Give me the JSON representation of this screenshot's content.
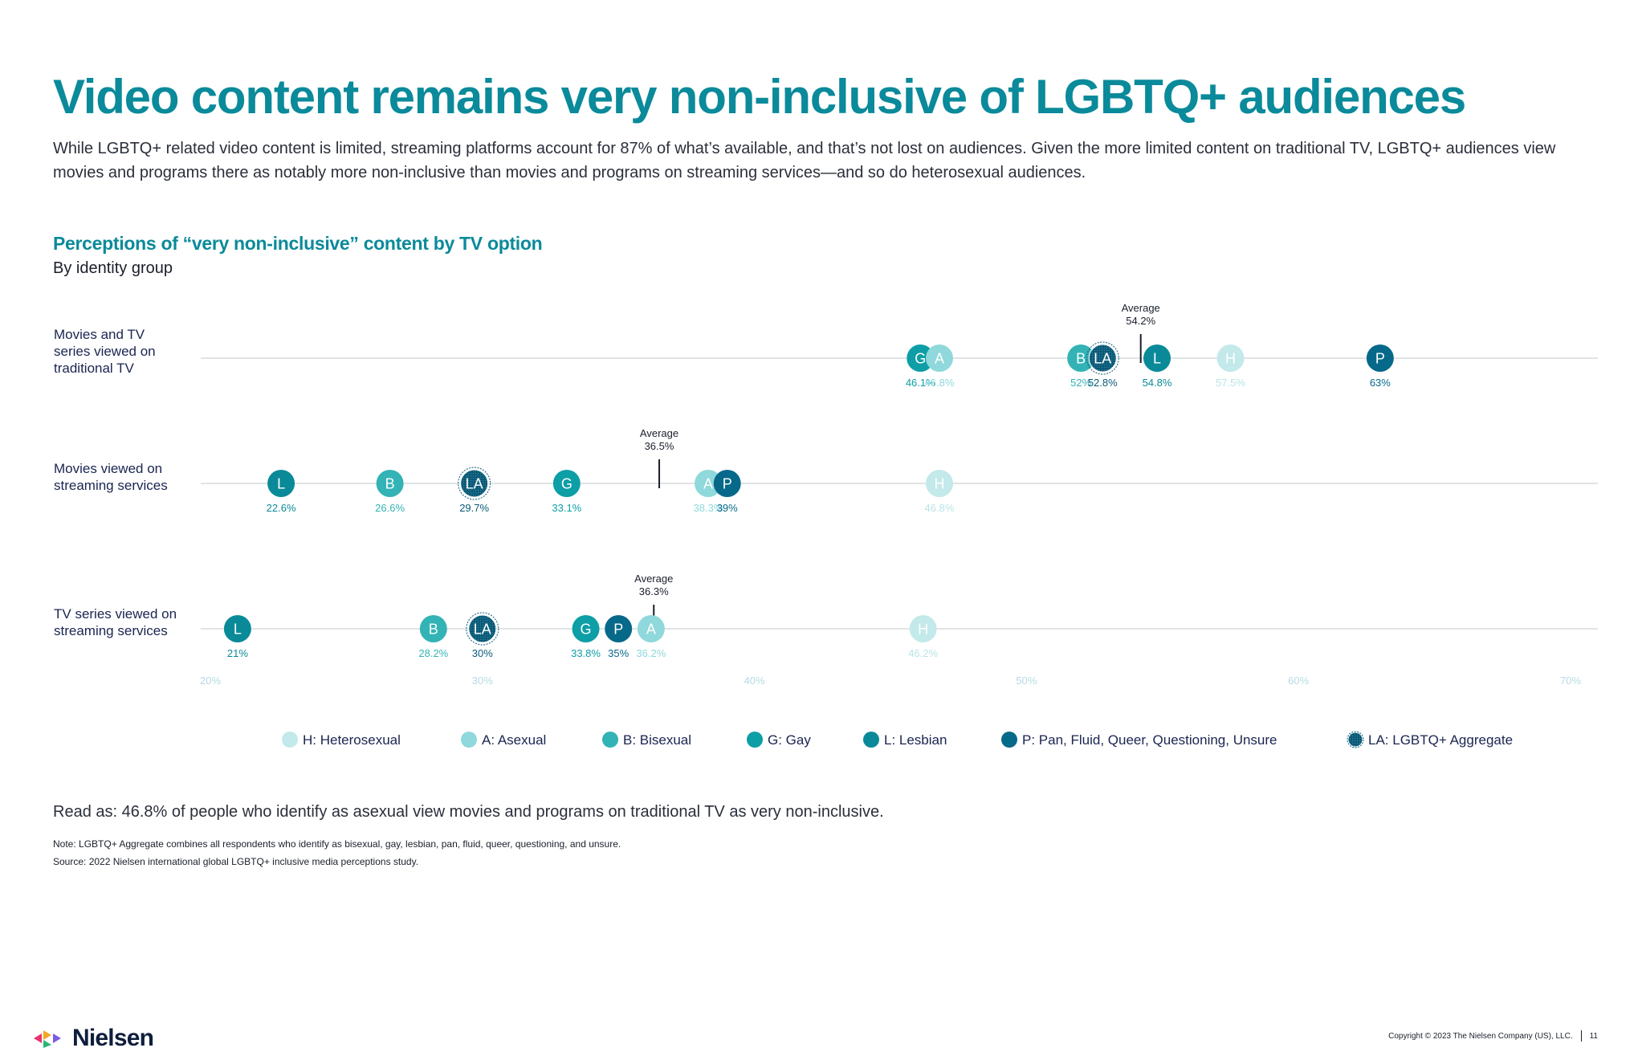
{
  "page": {
    "title": "Video content remains very non-inclusive of LGBTQ+ audiences",
    "intro": "While LGBTQ+ related video content is limited, streaming platforms account for 87% of what’s available, and that’s not lost on audiences. Given the more limited content on traditional TV, LGBTQ+ audiences view movies and programs there as notably more non-inclusive than movies and programs on streaming services—and so do heterosexual audiences.",
    "read_as": "Read as: 46.8% of people who identify as asexual view movies and programs on traditional TV as very non-inclusive.",
    "note": "Note: LGBTQ+ Aggregate combines all respondents who identify as bisexual, gay, lesbian, pan, fluid, queer, questioning, and unsure.",
    "source": "Source: 2022 Nielsen international global LGBTQ+ inclusive media perceptions study.",
    "brand": "Nielsen",
    "copyright": "Copyright © 2023 The Nielsen Company (US), LLC.",
    "page_number": "11"
  },
  "chart_data": {
    "type": "scatter",
    "title": "Perceptions of “very non-inclusive” content by TV option",
    "subtitle": "By identity group",
    "xlim": [
      20,
      70
    ],
    "x_ticks": [
      {
        "value": 20,
        "label": "20%"
      },
      {
        "value": 30,
        "label": "30%"
      },
      {
        "value": 40,
        "label": "40%"
      },
      {
        "value": 50,
        "label": "50%"
      },
      {
        "value": 60,
        "label": "60%"
      },
      {
        "value": 70,
        "label": "70%"
      }
    ],
    "average_word": "Average",
    "groups": [
      {
        "code": "H",
        "name": "H: Heterosexual",
        "color": "#c3e9ea",
        "text_color": "#b8e4e6"
      },
      {
        "code": "A",
        "name": "A: Asexual",
        "color": "#8fd8db",
        "text_color": "#8fd8db"
      },
      {
        "code": "B",
        "name": "B: Bisexual",
        "color": "#33b3b5",
        "text_color": "#33b3b5"
      },
      {
        "code": "G",
        "name": "G: Gay",
        "color": "#0d9ea6",
        "text_color": "#0d9ea6"
      },
      {
        "code": "L",
        "name": "L: Lesbian",
        "color": "#0a8a98",
        "text_color": "#0a8a98"
      },
      {
        "code": "P",
        "name": "P: Pan, Fluid, Queer, Questioning, Unsure",
        "color": "#07698a",
        "text_color": "#07698a"
      },
      {
        "code": "LA",
        "name": "LA: LGBTQ+ Aggregate",
        "color": "#0b5a78",
        "text_color": "#0b5a78"
      }
    ],
    "rows": [
      {
        "label": [
          "Movies and TV",
          "series viewed on",
          "traditional TV"
        ],
        "average": 54.2,
        "average_label": "54.2%",
        "points": [
          {
            "group": "G",
            "value": 46.1,
            "label": "46.1%"
          },
          {
            "group": "A",
            "value": 46.8,
            "label": "46.8%"
          },
          {
            "group": "B",
            "value": 52.0,
            "label": "52%"
          },
          {
            "group": "LA",
            "value": 52.8,
            "label": "52.8%"
          },
          {
            "group": "L",
            "value": 54.8,
            "label": "54.8%"
          },
          {
            "group": "H",
            "value": 57.5,
            "label": "57.5%"
          },
          {
            "group": "P",
            "value": 63.0,
            "label": "63%"
          }
        ]
      },
      {
        "label": [
          "Movies viewed on",
          "streaming services"
        ],
        "average": 36.5,
        "average_label": "36.5%",
        "points": [
          {
            "group": "L",
            "value": 22.6,
            "label": "22.6%"
          },
          {
            "group": "B",
            "value": 26.6,
            "label": "26.6%"
          },
          {
            "group": "LA",
            "value": 29.7,
            "label": "29.7%"
          },
          {
            "group": "G",
            "value": 33.1,
            "label": "33.1%"
          },
          {
            "group": "A",
            "value": 38.3,
            "label": "38.3%"
          },
          {
            "group": "P",
            "value": 39.0,
            "label": "39%"
          },
          {
            "group": "H",
            "value": 46.8,
            "label": "46.8%"
          }
        ]
      },
      {
        "label": [
          "TV series viewed on",
          "streaming services"
        ],
        "average": 36.3,
        "average_label": "36.3%",
        "points": [
          {
            "group": "L",
            "value": 21.0,
            "label": "21%"
          },
          {
            "group": "B",
            "value": 28.2,
            "label": "28.2%"
          },
          {
            "group": "LA",
            "value": 30.0,
            "label": "30%"
          },
          {
            "group": "G",
            "value": 33.8,
            "label": "33.8%"
          },
          {
            "group": "P",
            "value": 35.0,
            "label": "35%"
          },
          {
            "group": "A",
            "value": 36.2,
            "label": "36.2%"
          },
          {
            "group": "H",
            "value": 46.2,
            "label": "46.2%"
          }
        ]
      }
    ]
  }
}
